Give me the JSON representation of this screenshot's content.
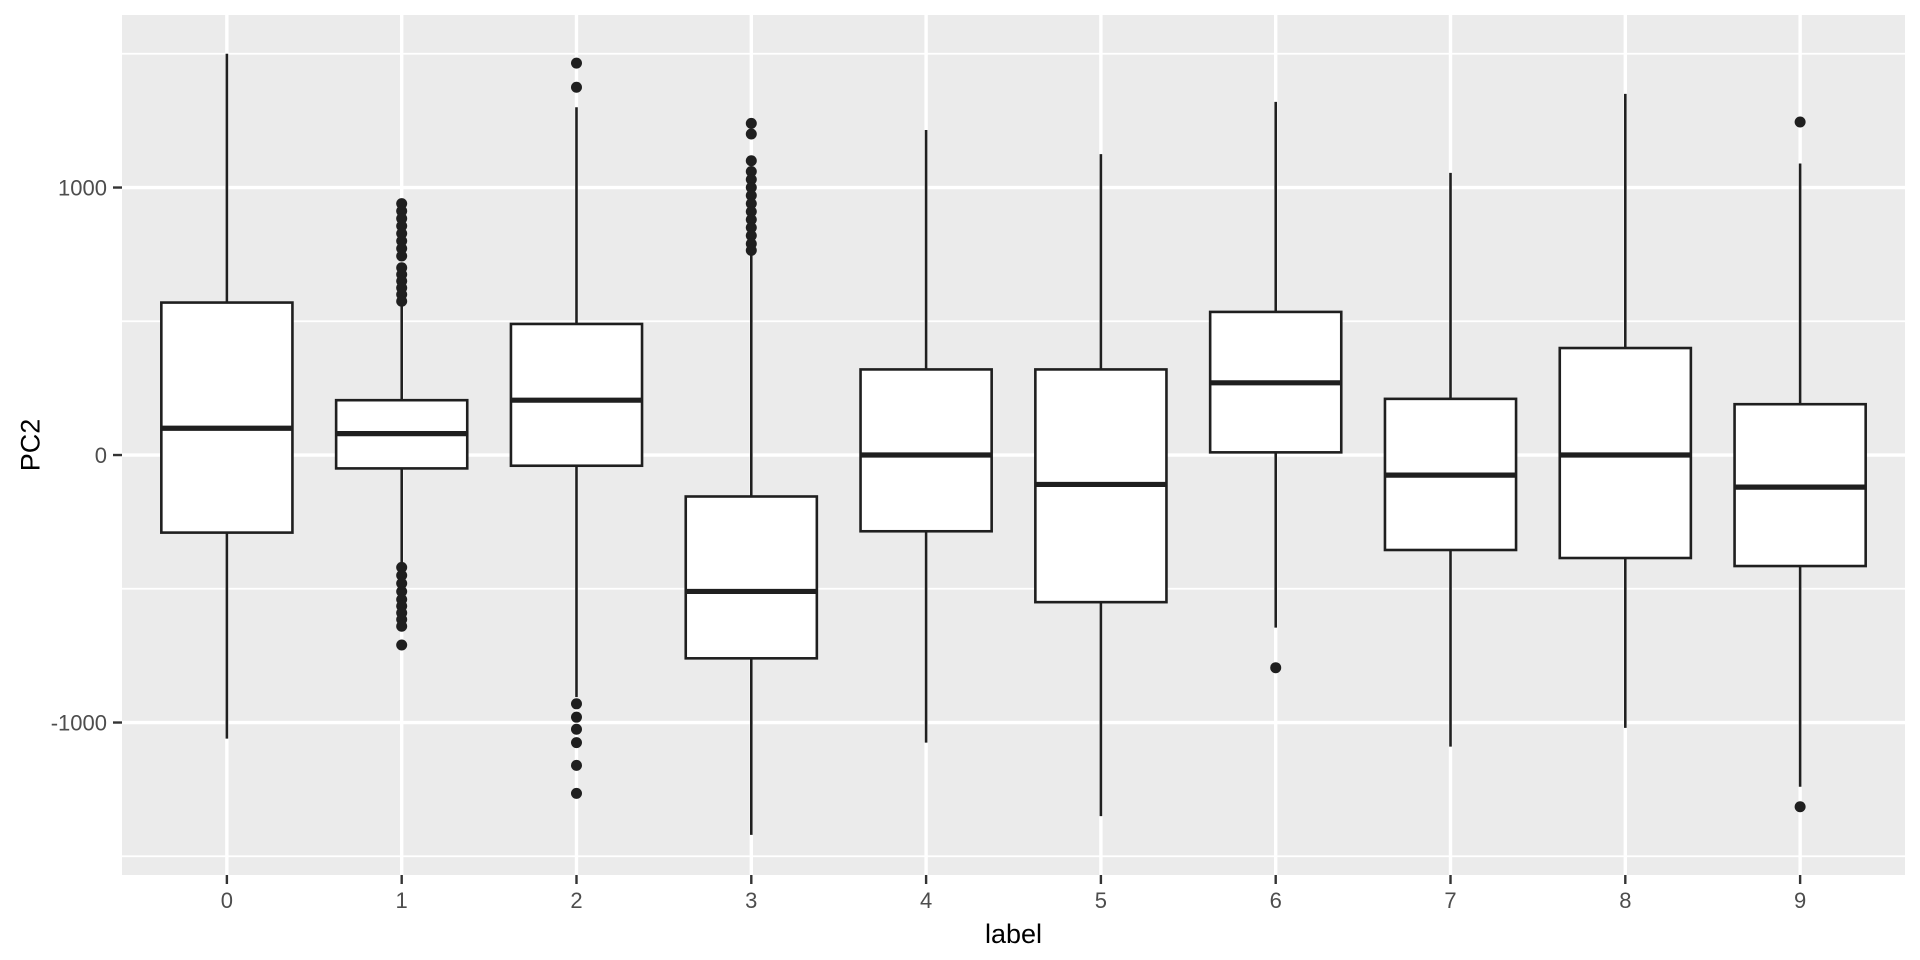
{
  "chart_data": {
    "type": "boxplot",
    "title": "",
    "xlabel": "label",
    "ylabel": "PC2",
    "categories": [
      "0",
      "1",
      "2",
      "3",
      "4",
      "5",
      "6",
      "7",
      "8",
      "9"
    ],
    "y_major_ticks": [
      {
        "value": 1000,
        "label": "1000"
      },
      {
        "value": 0,
        "label": "0"
      },
      {
        "value": -1000,
        "label": "-1000"
      }
    ],
    "y_minor_gridlines": [
      1500,
      500,
      -500,
      -1500
    ],
    "ylim": [
      -1570,
      1645
    ],
    "legend": "none",
    "grid": {
      "horizontal": "major+minor white lines",
      "vertical": "white line at each category center"
    },
    "boxes": [
      {
        "category": "0",
        "whisker_low": -1060,
        "q1": -290,
        "median": 100,
        "q3": 570,
        "whisker_high": 1500,
        "outliers": []
      },
      {
        "category": "1",
        "whisker_low": -400,
        "q1": -50,
        "median": 80,
        "q3": 205,
        "whisker_high": 560,
        "outliers": [
          940,
          912,
          884,
          856,
          828,
          800,
          772,
          744,
          700,
          675,
          650,
          625,
          600,
          575,
          -420,
          -450,
          -480,
          -510,
          -540,
          -565,
          -590,
          -615,
          -640,
          -710
        ]
      },
      {
        "category": "2",
        "whisker_low": -905,
        "q1": -40,
        "median": 205,
        "q3": 490,
        "whisker_high": 1300,
        "outliers": [
          1465,
          1375,
          -930,
          -980,
          -1025,
          -1075,
          -1160,
          -1265
        ]
      },
      {
        "category": "3",
        "whisker_low": -1420,
        "q1": -760,
        "median": -510,
        "q3": -155,
        "whisker_high": 755,
        "outliers": [
          1240,
          1200,
          1100,
          1060,
          1030,
          1000,
          970,
          940,
          910,
          880,
          850,
          820,
          790,
          765
        ]
      },
      {
        "category": "4",
        "whisker_low": -1075,
        "q1": -285,
        "median": 0,
        "q3": 320,
        "whisker_high": 1215,
        "outliers": []
      },
      {
        "category": "5",
        "whisker_low": -1350,
        "q1": -550,
        "median": -110,
        "q3": 320,
        "whisker_high": 1125,
        "outliers": []
      },
      {
        "category": "6",
        "whisker_low": -645,
        "q1": 10,
        "median": 270,
        "q3": 535,
        "whisker_high": 1320,
        "outliers": [
          -795
        ]
      },
      {
        "category": "7",
        "whisker_low": -1090,
        "q1": -355,
        "median": -75,
        "q3": 210,
        "whisker_high": 1055,
        "outliers": []
      },
      {
        "category": "8",
        "whisker_low": -1020,
        "q1": -385,
        "median": 0,
        "q3": 400,
        "whisker_high": 1350,
        "outliers": []
      },
      {
        "category": "9",
        "whisker_low": -1240,
        "q1": -415,
        "median": -120,
        "q3": 190,
        "whisker_high": 1090,
        "outliers": [
          1245,
          -1315
        ]
      }
    ],
    "colors": {
      "background": "#FFFFFF",
      "panel_bg": "#EBEBEB",
      "grid": "#FFFFFF",
      "box_fill": "#FFFFFF",
      "box_stroke": "#1F1F1F",
      "outlier": "#1F1F1F",
      "tick_mark": "#333333",
      "tick_text": "#4D4D4D",
      "title_text": "#000000"
    }
  }
}
